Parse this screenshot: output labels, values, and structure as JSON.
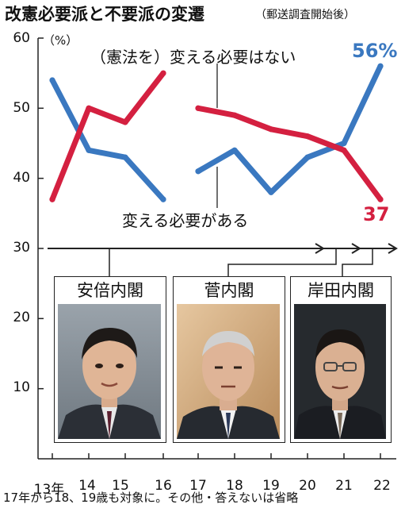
{
  "title": "改憲必要派と不要派の変遷",
  "subtitle": "（郵送調査開始後）",
  "unit": "（%）",
  "footnote": "17年から18、19歳も対象に。その他・答えないは省略",
  "colors": {
    "yes": "#3a78c0",
    "no": "#d42040"
  },
  "chart_data": {
    "type": "line",
    "title": "改憲必要派と不要派の変遷",
    "ylabel": "（%）",
    "ylim": [
      0,
      60
    ],
    "yticks": [
      "10",
      "20",
      "30",
      "40",
      "50",
      "60"
    ],
    "x_labels": [
      "13年",
      "14",
      "15",
      "16",
      "17",
      "18",
      "19",
      "20",
      "21",
      "22"
    ],
    "series": [
      {
        "name": "変える必要がある",
        "segments": [
          {
            "x": [
              13,
              14,
              15,
              16
            ],
            "y": [
              54,
              44,
              43,
              37
            ]
          },
          {
            "x": [
              17,
              18,
              19,
              20,
              21,
              22
            ],
            "y": [
              41,
              44,
              38,
              43,
              45,
              56
            ]
          }
        ]
      },
      {
        "name": "（憲法を）変える必要はない",
        "segments": [
          {
            "x": [
              13,
              14,
              15,
              16
            ],
            "y": [
              37,
              50,
              48,
              55
            ]
          },
          {
            "x": [
              17,
              18,
              19,
              20,
              21,
              22
            ],
            "y": [
              50,
              49,
              47,
              46,
              44,
              37
            ]
          }
        ]
      }
    ],
    "end_labels": {
      "yes": "56%",
      "no": "37"
    },
    "cabinets": [
      {
        "name": "安倍内閣",
        "from": 13,
        "to": 20
      },
      {
        "name": "菅内閣",
        "from": 20,
        "to": 21
      },
      {
        "name": "岸田内閣",
        "from": 21,
        "to": 22
      }
    ]
  }
}
